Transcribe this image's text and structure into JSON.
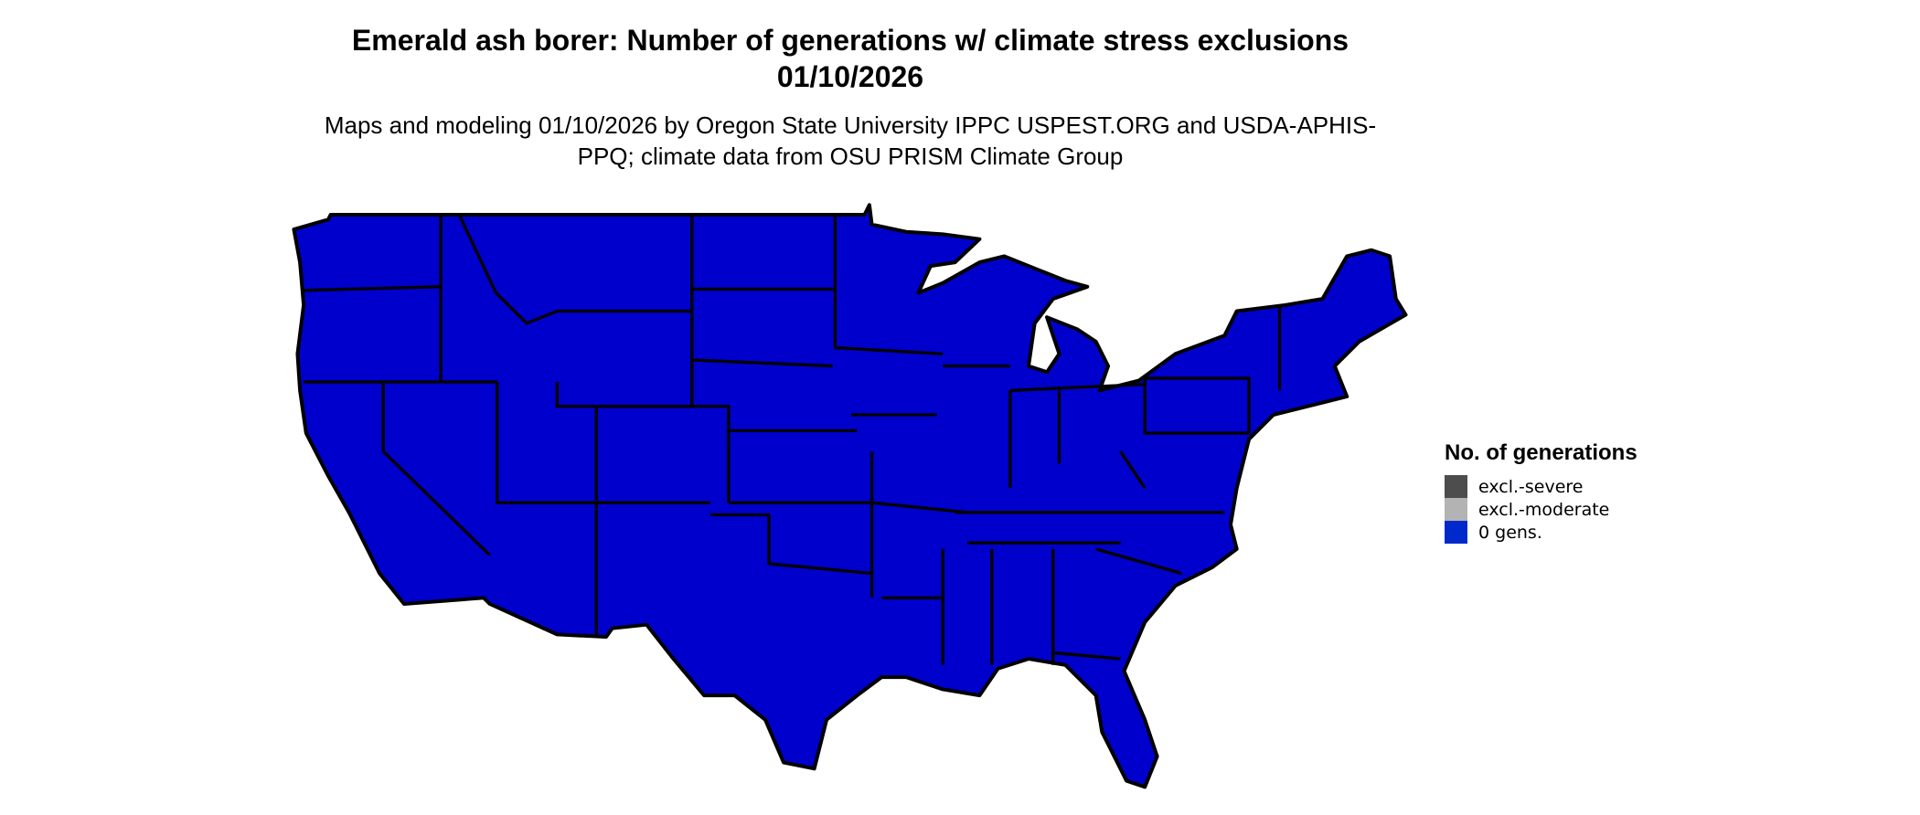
{
  "title": "Emerald ash borer: Number of generations w/ climate stress exclusions 01/10/2026",
  "subtitle": "Maps and modeling 01/10/2026 by Oregon State University IPPC USPEST.ORG and USDA-APHIS-PPQ; climate data from OSU PRISM Climate Group",
  "map": {
    "region": "Contiguous United States",
    "fill_color": "#0000CC",
    "border_color": "#000000"
  },
  "legend": {
    "title": "No. of generations",
    "items": [
      {
        "label": "excl.-severe",
        "color": "#4D4D4D"
      },
      {
        "label": "excl.-moderate",
        "color": "#B3B3B3"
      },
      {
        "label": "0 gens.",
        "color": "#0029CC"
      }
    ]
  }
}
